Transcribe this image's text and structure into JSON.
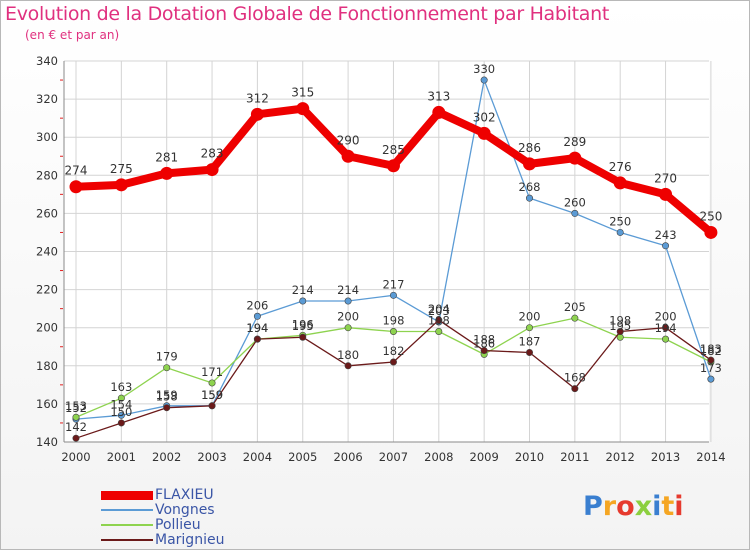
{
  "header": {
    "title": "Evolution de la Dotation Globale de Fonctionnement par Habitant",
    "subtitle": "(en € et par an)"
  },
  "logo": {
    "text": "Proxiti"
  },
  "chart_data": {
    "type": "line",
    "x": [
      "2000",
      "2001",
      "2002",
      "2003",
      "2004",
      "2005",
      "2006",
      "2007",
      "2008",
      "2009",
      "2010",
      "2011",
      "2012",
      "2013",
      "2014"
    ],
    "yticks": [
      140,
      160,
      180,
      200,
      220,
      240,
      260,
      280,
      300,
      320,
      340
    ],
    "ylim": [
      140,
      340
    ],
    "grid": true,
    "legend_position": "bottom-left",
    "series": [
      {
        "name": "FLAXIEU",
        "color": "#ee0000",
        "values": [
          274,
          275,
          281,
          283,
          312,
          315,
          290,
          285,
          313,
          302,
          286,
          289,
          276,
          270,
          250
        ],
        "labels": [
          "274",
          "275",
          "281",
          "283",
          "312",
          "315",
          "290",
          "285",
          "313",
          "302",
          "286",
          "289",
          "276",
          "270",
          "250"
        ]
      },
      {
        "name": "Vongnes",
        "color": "#5b9bd5",
        "values": [
          152,
          154,
          159,
          159,
          206,
          214,
          214,
          217,
          203,
          330,
          268,
          260,
          250,
          243,
          173
        ],
        "labels": [
          "152",
          "154",
          "159",
          "159",
          "206",
          "214",
          "214",
          "217",
          "203",
          "330",
          "268",
          "260",
          "250",
          "243",
          "173"
        ]
      },
      {
        "name": "Pollieu",
        "color": "#8ed34f",
        "values": [
          153,
          163,
          179,
          171,
          194,
          196,
          200,
          198,
          198,
          186,
          200,
          205,
          195,
          194,
          182
        ],
        "labels": [
          "153",
          "163",
          "179",
          "171",
          "194",
          "196",
          "200",
          "198",
          "198",
          "186",
          "200",
          "205",
          "195",
          "194",
          "182"
        ]
      },
      {
        "name": "Marignieu",
        "color": "#6b1a1a",
        "values": [
          142,
          150,
          158,
          159,
          194,
          195,
          180,
          182,
          204,
          188,
          187,
          168,
          198,
          200,
          183
        ],
        "labels": [
          "142",
          "150",
          "158",
          "159",
          "194",
          "195",
          "180",
          "182",
          "204",
          "188",
          "187",
          "168",
          "198",
          "200",
          "183"
        ]
      }
    ]
  }
}
